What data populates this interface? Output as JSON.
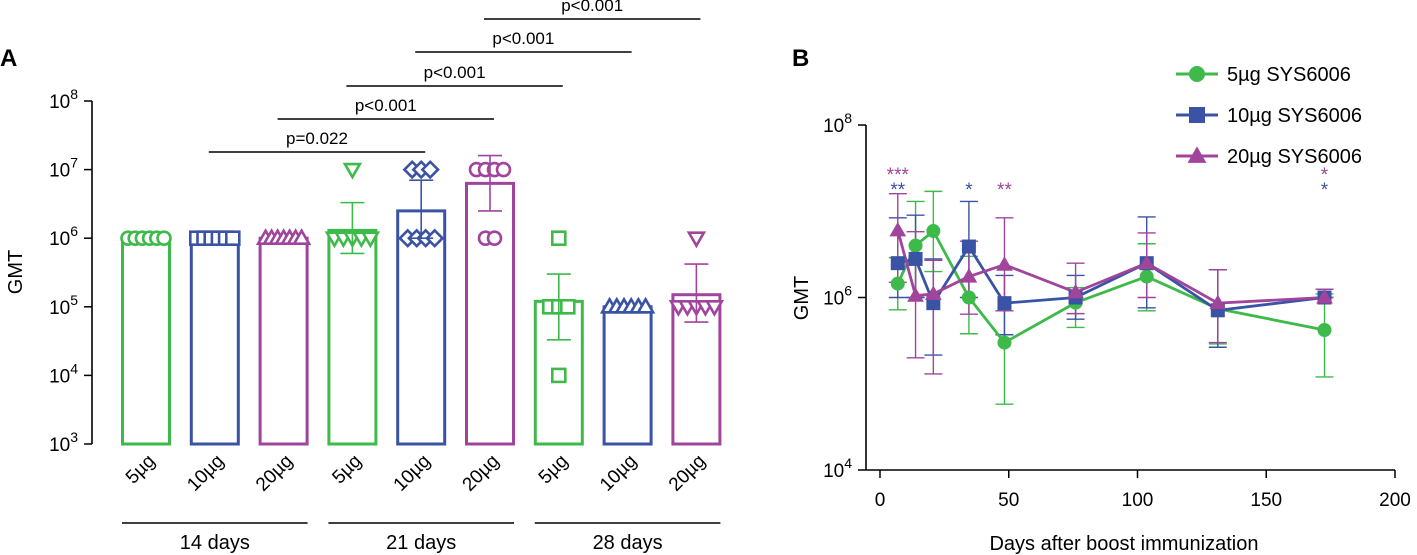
{
  "chart_data": [
    {
      "panel": "A",
      "type": "bar",
      "ylabel": "GMT",
      "yscale": "log10",
      "ylim": [
        1000,
        100000000
      ],
      "yticks": [
        {
          "value": 1000,
          "base": "10",
          "exp": "3"
        },
        {
          "value": 10000,
          "base": "10",
          "exp": "4"
        },
        {
          "value": 100000,
          "base": "10",
          "exp": "5"
        },
        {
          "value": 1000000,
          "base": "10",
          "exp": "6"
        },
        {
          "value": 10000000,
          "base": "10",
          "exp": "7"
        },
        {
          "value": 100000000,
          "base": "10",
          "exp": "8"
        }
      ],
      "groups": [
        {
          "label": "14 days",
          "start": 0,
          "end": 2
        },
        {
          "label": "21 days",
          "start": 3,
          "end": 5
        },
        {
          "label": "28 days",
          "start": 6,
          "end": 8
        }
      ],
      "bars": [
        {
          "label": "5µg",
          "dose": "5µg",
          "color": "#3dba4a",
          "marker": "circle",
          "value": 1000000,
          "err_high": null,
          "err_low": null,
          "points": [
            1000000,
            1000000,
            1000000,
            1000000,
            1000000,
            1000000
          ]
        },
        {
          "label": "10µg",
          "dose": "10µg",
          "color": "#3a53a4",
          "marker": "square",
          "value": 1000000,
          "err_high": null,
          "err_low": null,
          "points": [
            1000000,
            1000000,
            1000000,
            1000000,
            1000000,
            1000000
          ]
        },
        {
          "label": "20µg",
          "dose": "20µg",
          "color": "#a0449c",
          "marker": "triangle",
          "value": 1000000,
          "err_high": null,
          "err_low": null,
          "points": [
            1000000,
            1000000,
            1000000,
            1000000,
            1000000,
            1000000,
            1000000
          ]
        },
        {
          "label": "5µg",
          "dose": "5µg",
          "color": "#3dba4a",
          "marker": "tri-down",
          "value": 1300000,
          "err_high": 3300000,
          "err_low": 600000,
          "points": [
            10000000,
            1000000,
            1000000,
            1000000,
            1000000,
            1000000
          ]
        },
        {
          "label": "10µg",
          "dose": "10µg",
          "color": "#3a53a4",
          "marker": "diamond",
          "value": 2500000,
          "err_high": 7000000,
          "err_low": 1000000,
          "points": [
            10000000,
            10000000,
            10000000,
            1000000,
            1000000,
            1000000,
            1000000
          ]
        },
        {
          "label": "20µg",
          "dose": "20µg",
          "color": "#a0449c",
          "marker": "circle",
          "value": 6300000,
          "err_high": 16000000,
          "err_low": 2500000,
          "points": [
            10000000,
            10000000,
            10000000,
            10000000,
            1000000,
            1000000
          ]
        },
        {
          "label": "5µg",
          "dose": "5µg",
          "color": "#3dba4a",
          "marker": "square",
          "value": 120000,
          "err_high": 300000,
          "err_low": 33000,
          "points": [
            1000000,
            100000,
            100000,
            100000,
            10000
          ]
        },
        {
          "label": "10µg",
          "dose": "10µg",
          "color": "#3a53a4",
          "marker": "triangle",
          "value": 100000,
          "err_high": null,
          "err_low": null,
          "points": [
            100000,
            100000,
            100000,
            100000,
            100000,
            100000
          ]
        },
        {
          "label": "20µg",
          "dose": "20µg",
          "color": "#a0449c",
          "marker": "tri-down",
          "value": 150000,
          "err_high": 420000,
          "err_low": 60000,
          "points": [
            1000000,
            100000,
            100000,
            100000,
            100000,
            100000
          ]
        }
      ],
      "significance": [
        {
          "from": 1,
          "to": 4,
          "level": 1,
          "label": "p=0.022"
        },
        {
          "from": 2,
          "to": 5,
          "level": 2,
          "label": "p<0.001"
        },
        {
          "from": 3,
          "to": 6,
          "level": 3,
          "label": "p<0.001"
        },
        {
          "from": 4,
          "to": 7,
          "level": 4,
          "label": "p<0.001"
        },
        {
          "from": 5,
          "to": 8,
          "level": 5,
          "label": "p<0.001"
        }
      ]
    },
    {
      "panel": "B",
      "type": "line",
      "xlabel": "Days after boost immunization",
      "ylabel": "GMT",
      "xlim": [
        0,
        200
      ],
      "xticks": [
        "0",
        "50",
        "100",
        "150",
        "200"
      ],
      "yscale": "log10",
      "ylim": [
        10000,
        100000000
      ],
      "yticks": [
        {
          "value": 10000,
          "base": "10",
          "exp": "4"
        },
        {
          "value": 1000000,
          "base": "10",
          "exp": "6"
        },
        {
          "value": 100000000,
          "base": "10",
          "exp": "8"
        }
      ],
      "series": [
        {
          "name": "5µg SYS6006",
          "color": "#3dba4a",
          "marker": "circle",
          "x": [
            7,
            14,
            21,
            35,
            49,
            77,
            105,
            133,
            175
          ],
          "y": [
            1450000,
            4000000,
            5900000,
            1000000,
            300000,
            870000,
            1750000,
            740000,
            420000
          ],
          "err_high": [
            2900000,
            13000000,
            17000000,
            3000000,
            700000,
            1300000,
            4200000,
            2100000,
            1100000
          ],
          "err_low": [
            720000,
            1000000,
            2000000,
            380000,
            58000,
            450000,
            700000,
            290000,
            120000
          ]
        },
        {
          "name": "10µg SYS6006",
          "color": "#3a53a4",
          "marker": "square",
          "x": [
            7,
            14,
            21,
            35,
            49,
            77,
            105,
            133,
            175
          ],
          "y": [
            2500000,
            2800000,
            860000,
            3900000,
            860000,
            1000000,
            2500000,
            710000,
            1000000
          ],
          "err_high": [
            8400000,
            9000000,
            2800000,
            13000000,
            1800000,
            1800000,
            8600000,
            2100000,
            1250000
          ],
          "err_low": [
            1000000,
            1000000,
            215000,
            1000000,
            370000,
            560000,
            760000,
            265000,
            1000000
          ]
        },
        {
          "name": "20µg SYS6006",
          "color": "#a0449c",
          "marker": "triangle",
          "x": [
            7,
            14,
            21,
            35,
            49,
            77,
            105,
            133,
            175
          ],
          "y": [
            6000000,
            1050000,
            1100000,
            1750000,
            2400000,
            1150000,
            2500000,
            860000,
            1000000
          ],
          "err_high": [
            16000000,
            5800000,
            2700000,
            4500000,
            8400000,
            2500000,
            5600000,
            2100000,
            1250000
          ],
          "err_low": [
            1500000,
            200000,
            130000,
            640000,
            700000,
            650000,
            1000000,
            300000,
            1000000
          ]
        }
      ],
      "annotations": [
        {
          "text": "***",
          "x": 7,
          "color": "#a0449c",
          "row": 0
        },
        {
          "text": "**",
          "x": 7,
          "color": "#3a53a4",
          "row": 1
        },
        {
          "text": "*",
          "x": 35,
          "color": "#3a53a4",
          "row": 1
        },
        {
          "text": "**",
          "x": 49,
          "color": "#a0449c",
          "row": 1
        },
        {
          "text": "*",
          "x": 175,
          "color": "#a0449c",
          "row": 0
        },
        {
          "text": "*",
          "x": 175,
          "color": "#3a53a4",
          "row": 1
        }
      ]
    }
  ]
}
